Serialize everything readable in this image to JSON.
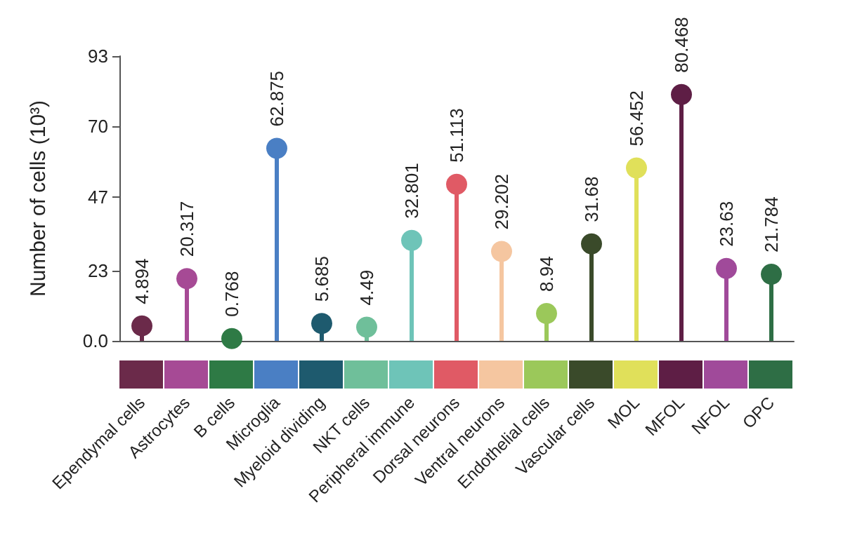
{
  "chart_data": {
    "type": "lollipop",
    "ylabel": "Number of cells (10³)",
    "categories": [
      "Ependymal cells",
      "Astrocytes",
      "B cells",
      "Microglia",
      "Myeloid dividing",
      "NKT cells",
      "Peripheral immune",
      "Dorsal neurons",
      "Ventral neurons",
      "Endothelial cells",
      "Vascular cells",
      "MOL",
      "MFOL",
      "NFOL",
      "OPC"
    ],
    "values": [
      4.894,
      20.317,
      0.768,
      62.875,
      5.685,
      4.49,
      32.801,
      51.113,
      29.202,
      8.94,
      31.68,
      56.452,
      80.468,
      23.63,
      21.784
    ],
    "colors": [
      "#6b2a4a",
      "#a64a95",
      "#2e7a45",
      "#4a7fc4",
      "#1e5a6e",
      "#6fbf9a",
      "#6ec4b8",
      "#e05a65",
      "#f5c6a0",
      "#9bc85a",
      "#3a4a2a",
      "#e0e05a",
      "#5e1e45",
      "#a04a9a",
      "#2e6e45"
    ],
    "ylim": [
      0,
      93
    ],
    "yticks": [
      {
        "value": 0,
        "label": "0.0"
      },
      23,
      47,
      70,
      93
    ],
    "data_labels": true,
    "marker": "circle",
    "grid": false
  }
}
